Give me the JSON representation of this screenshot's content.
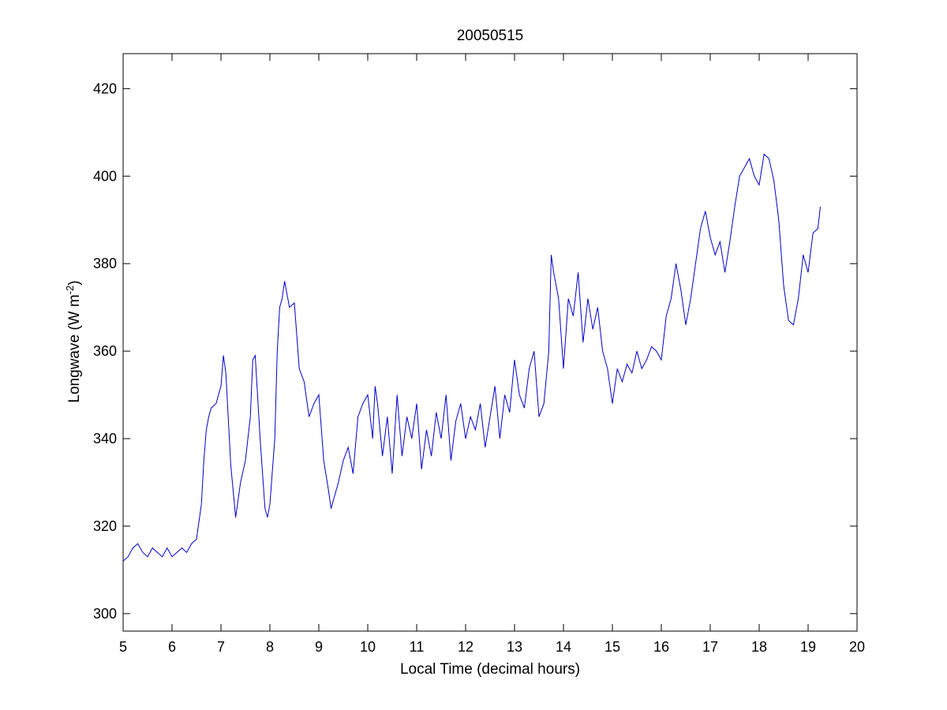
{
  "chart_data": {
    "type": "line",
    "title": "20050515",
    "xlabel": "Local Time (decimal hours)",
    "ylabel": {
      "main": "Longwave (W m",
      "superscript": "-2",
      "close": ")"
    },
    "xlim": [
      5,
      20
    ],
    "ylim": [
      296,
      428
    ],
    "xticks": [
      5,
      6,
      7,
      8,
      9,
      10,
      11,
      12,
      13,
      14,
      15,
      16,
      17,
      18,
      19,
      20
    ],
    "yticks": [
      300,
      320,
      340,
      360,
      380,
      400,
      420
    ],
    "grid": false,
    "series_color": "#0000cc",
    "series": [
      {
        "x": [
          5.0,
          5.1,
          5.2,
          5.3,
          5.4,
          5.5,
          5.6,
          5.7,
          5.8,
          5.9,
          6.0,
          6.1,
          6.2,
          6.3,
          6.4,
          6.5,
          6.6,
          6.65,
          6.7,
          6.75,
          6.8,
          6.9,
          7.0,
          7.05,
          7.1,
          7.2,
          7.3,
          7.4,
          7.5,
          7.6,
          7.65,
          7.7,
          7.8,
          7.9,
          7.95,
          8.0,
          8.1,
          8.15,
          8.2,
          8.25,
          8.3,
          8.4,
          8.5,
          8.6,
          8.7,
          8.8,
          8.9,
          9.0,
          9.1,
          9.2,
          9.25,
          9.3,
          9.4,
          9.5,
          9.6,
          9.7,
          9.8,
          9.9,
          10.0,
          10.1,
          10.15,
          10.2,
          10.3,
          10.4,
          10.5,
          10.6,
          10.7,
          10.8,
          10.9,
          11.0,
          11.1,
          11.2,
          11.3,
          11.4,
          11.5,
          11.6,
          11.7,
          11.8,
          11.9,
          12.0,
          12.1,
          12.2,
          12.3,
          12.4,
          12.5,
          12.6,
          12.7,
          12.8,
          12.9,
          13.0,
          13.1,
          13.2,
          13.3,
          13.4,
          13.5,
          13.6,
          13.7,
          13.75,
          13.8,
          13.9,
          14.0,
          14.1,
          14.2,
          14.3,
          14.4,
          14.5,
          14.6,
          14.7,
          14.8,
          14.9,
          15.0,
          15.1,
          15.2,
          15.3,
          15.4,
          15.5,
          15.6,
          15.7,
          15.8,
          15.9,
          16.0,
          16.1,
          16.2,
          16.3,
          16.4,
          16.5,
          16.6,
          16.7,
          16.8,
          16.9,
          17.0,
          17.1,
          17.2,
          17.3,
          17.4,
          17.5,
          17.6,
          17.7,
          17.8,
          17.9,
          18.0,
          18.1,
          18.2,
          18.3,
          18.4,
          18.5,
          18.6,
          18.7,
          18.8,
          18.9,
          19.0,
          19.1,
          19.2,
          19.25
        ],
        "y": [
          312,
          313,
          315,
          316,
          314,
          313,
          315,
          314,
          313,
          315,
          313,
          314,
          315,
          314,
          316,
          317,
          325,
          335,
          342,
          345,
          347,
          348,
          352,
          359,
          355,
          334,
          322,
          330,
          335,
          345,
          358,
          359,
          340,
          324,
          322,
          325,
          340,
          360,
          370,
          372,
          376,
          370,
          371,
          356,
          353,
          345,
          348,
          350,
          335,
          328,
          324,
          326,
          330,
          335,
          338,
          332,
          345,
          348,
          350,
          340,
          352,
          348,
          336,
          345,
          332,
          350,
          336,
          345,
          340,
          348,
          333,
          342,
          336,
          346,
          340,
          350,
          335,
          344,
          348,
          340,
          345,
          342,
          348,
          338,
          345,
          352,
          340,
          350,
          346,
          358,
          350,
          347,
          356,
          360,
          345,
          348,
          360,
          382,
          378,
          372,
          356,
          372,
          368,
          378,
          362,
          372,
          365,
          370,
          360,
          356,
          348,
          356,
          353,
          357,
          355,
          360,
          356,
          358,
          361,
          360,
          358,
          368,
          372,
          380,
          374,
          366,
          372,
          380,
          388,
          392,
          386,
          382,
          385,
          378,
          385,
          393,
          400,
          402,
          404,
          400,
          398,
          405,
          404,
          399,
          390,
          375,
          367,
          366,
          372,
          382,
          378,
          387,
          388,
          393
        ]
      }
    ]
  }
}
